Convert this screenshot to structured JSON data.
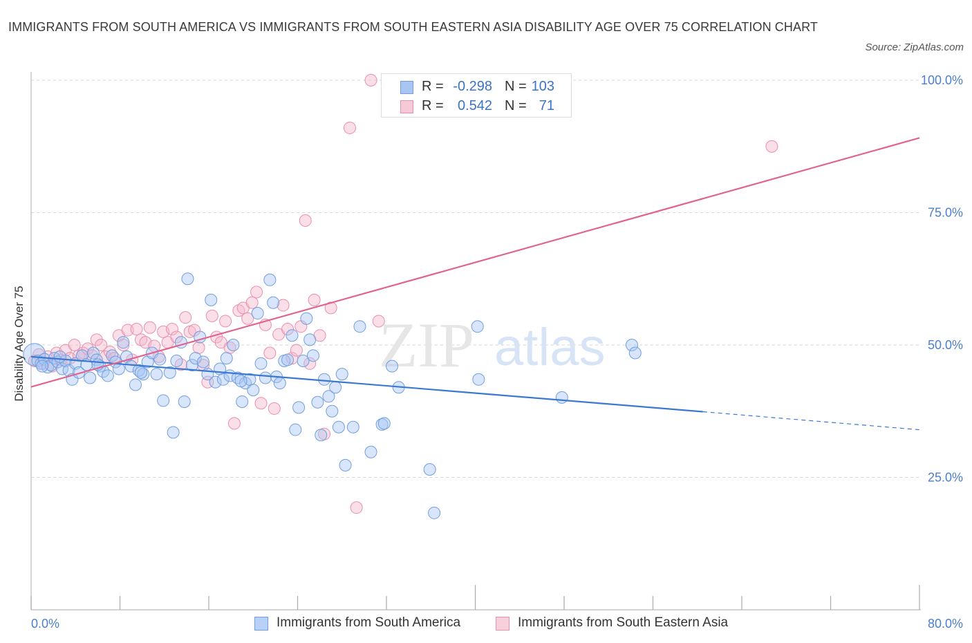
{
  "title": "IMMIGRANTS FROM SOUTH AMERICA VS IMMIGRANTS FROM SOUTH EASTERN ASIA DISABILITY AGE OVER 75 CORRELATION CHART",
  "source": "Source: ZipAtlas.com",
  "watermark": {
    "zip": "ZIP",
    "atlas": "atlas"
  },
  "legend": {
    "rows": [
      {
        "r_label": "R =",
        "r_value": "-0.298",
        "n_label": "N =",
        "n_value": "103"
      },
      {
        "r_label": "R =",
        "r_value": "0.542",
        "n_label": "N =",
        "n_value": "71"
      }
    ]
  },
  "bottom_legend": {
    "south_america": "Immigrants from South America",
    "se_asia": "Immigrants from South Eastern Asia"
  },
  "colors": {
    "blue_fill": "#a9c6f3",
    "blue_stroke": "#6f9ee0",
    "blue_line": "#3a78d1",
    "pink_fill": "#f6b9cb",
    "pink_stroke": "#e98fab",
    "pink_line": "#e0648d",
    "tick": "#4a7fd0",
    "grid": "#d6d6d6"
  },
  "chart_data": {
    "type": "scatter",
    "title": "IMMIGRANTS FROM SOUTH AMERICA VS IMMIGRANTS FROM SOUTH EASTERN ASIA DISABILITY AGE OVER 75 CORRELATION CHART",
    "xlabel": "",
    "ylabel": "Disability Age Over 75",
    "xlim": [
      0,
      80
    ],
    "ylim": [
      0,
      102
    ],
    "x_tick_labels": [
      "0.0%",
      "80.0%"
    ],
    "y_ticks": [
      25,
      50,
      75,
      100
    ],
    "y_tick_labels": [
      "25.0%",
      "50.0%",
      "75.0%",
      "100.0%"
    ],
    "grid": true,
    "legend_position": "top-center",
    "series": [
      {
        "name": "Immigrants from South America",
        "color": "#6f9ee0",
        "trend": {
          "x": [
            0,
            60.5
          ],
          "y": [
            47.8,
            37.4
          ],
          "dashed_to": [
            80,
            34.0
          ]
        },
        "points": [
          [
            0.3,
            48.2
          ],
          [
            0.6,
            47.0
          ],
          [
            0.9,
            46.5
          ],
          [
            1.2,
            47.3
          ],
          [
            1.5,
            45.8
          ],
          [
            1.8,
            46.2
          ],
          [
            2.1,
            47.5
          ],
          [
            2.4,
            46.8
          ],
          [
            2.8,
            45.5
          ],
          [
            3.1,
            47.0
          ],
          [
            3.4,
            45.2
          ],
          [
            3.7,
            43.5
          ],
          [
            4.0,
            46.5
          ],
          [
            4.3,
            44.8
          ],
          [
            4.6,
            48.0
          ],
          [
            5.0,
            46.3
          ],
          [
            5.3,
            43.8
          ],
          [
            5.6,
            48.5
          ],
          [
            5.9,
            47.2
          ],
          [
            6.2,
            46.0
          ],
          [
            6.5,
            45.0
          ],
          [
            6.9,
            44.2
          ],
          [
            7.3,
            48.0
          ],
          [
            7.6,
            46.8
          ],
          [
            7.9,
            45.5
          ],
          [
            8.3,
            50.5
          ],
          [
            8.6,
            47.8
          ],
          [
            9.0,
            46.0
          ],
          [
            9.4,
            42.5
          ],
          [
            9.7,
            45.2
          ],
          [
            10.1,
            44.5
          ],
          [
            10.5,
            46.8
          ],
          [
            10.9,
            48.5
          ],
          [
            11.3,
            44.5
          ],
          [
            11.6,
            47.3
          ],
          [
            11.9,
            39.5
          ],
          [
            12.5,
            44.8
          ],
          [
            12.8,
            33.5
          ],
          [
            13.1,
            47.0
          ],
          [
            13.5,
            50.5
          ],
          [
            13.8,
            39.3
          ],
          [
            14.1,
            62.5
          ],
          [
            14.5,
            46.2
          ],
          [
            14.8,
            47.5
          ],
          [
            15.2,
            51.5
          ],
          [
            15.5,
            46.8
          ],
          [
            15.9,
            44.5
          ],
          [
            16.2,
            58.5
          ],
          [
            16.6,
            43.0
          ],
          [
            17.0,
            45.5
          ],
          [
            17.3,
            43.5
          ],
          [
            17.6,
            47.5
          ],
          [
            17.9,
            44.2
          ],
          [
            18.2,
            50.0
          ],
          [
            18.6,
            43.8
          ],
          [
            19.0,
            39.3
          ],
          [
            19.3,
            42.8
          ],
          [
            19.7,
            43.5
          ],
          [
            20.0,
            41.5
          ],
          [
            20.4,
            56.0
          ],
          [
            20.7,
            46.5
          ],
          [
            21.1,
            43.8
          ],
          [
            21.5,
            62.3
          ],
          [
            21.8,
            58.0
          ],
          [
            22.1,
            44.0
          ],
          [
            22.4,
            42.8
          ],
          [
            22.8,
            47.0
          ],
          [
            23.1,
            47.2
          ],
          [
            23.5,
            51.8
          ],
          [
            23.8,
            34.0
          ],
          [
            24.1,
            38.2
          ],
          [
            24.5,
            47.0
          ],
          [
            24.8,
            55.0
          ],
          [
            25.1,
            51.0
          ],
          [
            25.4,
            48.0
          ],
          [
            25.8,
            39.2
          ],
          [
            26.1,
            33.0
          ],
          [
            26.4,
            43.5
          ],
          [
            26.8,
            40.3
          ],
          [
            27.1,
            37.5
          ],
          [
            27.4,
            42.0
          ],
          [
            27.7,
            34.5
          ],
          [
            28.0,
            44.5
          ],
          [
            28.3,
            27.3
          ],
          [
            29.0,
            34.5
          ],
          [
            29.6,
            53.5
          ],
          [
            30.6,
            29.8
          ],
          [
            31.6,
            35.0
          ],
          [
            32.5,
            46.0
          ],
          [
            33.1,
            42.0
          ],
          [
            35.9,
            26.5
          ],
          [
            36.3,
            18.3
          ],
          [
            40.2,
            53.5
          ],
          [
            40.3,
            43.5
          ],
          [
            47.8,
            40.1
          ],
          [
            54.1,
            50.0
          ],
          [
            54.4,
            48.5
          ],
          [
            31.8,
            35.2
          ],
          [
            18.9,
            43.2
          ],
          [
            6.0,
            46.3
          ],
          [
            2.6,
            47.8
          ],
          [
            1.0,
            46.0
          ],
          [
            9.9,
            44.8
          ]
        ],
        "point_size": "small, one large cluster point at x≈0.3"
      },
      {
        "name": "Immigrants from South Eastern Asia",
        "color": "#e98fab",
        "trend": {
          "x": [
            0,
            80
          ],
          "y": [
            42.1,
            89.1
          ]
        },
        "points": [
          [
            0.3,
            47.0
          ],
          [
            0.7,
            48.2
          ],
          [
            1.1,
            46.5
          ],
          [
            1.5,
            47.8
          ],
          [
            1.9,
            46.0
          ],
          [
            2.3,
            48.5
          ],
          [
            2.7,
            47.2
          ],
          [
            3.1,
            49.0
          ],
          [
            3.5,
            47.5
          ],
          [
            3.9,
            50.0
          ],
          [
            4.3,
            48.0
          ],
          [
            4.7,
            48.5
          ],
          [
            5.1,
            49.3
          ],
          [
            5.5,
            48.0
          ],
          [
            5.9,
            51.0
          ],
          [
            6.3,
            50.0
          ],
          [
            6.7,
            47.8
          ],
          [
            7.1,
            48.7
          ],
          [
            7.5,
            47.5
          ],
          [
            7.9,
            51.8
          ],
          [
            8.3,
            50.0
          ],
          [
            8.7,
            52.8
          ],
          [
            9.1,
            47.2
          ],
          [
            9.5,
            53.0
          ],
          [
            9.9,
            51.0
          ],
          [
            10.3,
            50.5
          ],
          [
            10.7,
            53.3
          ],
          [
            11.1,
            49.8
          ],
          [
            11.5,
            47.8
          ],
          [
            11.9,
            52.5
          ],
          [
            12.3,
            50.5
          ],
          [
            12.7,
            53.0
          ],
          [
            13.1,
            51.5
          ],
          [
            13.5,
            46.3
          ],
          [
            13.9,
            55.2
          ],
          [
            14.3,
            52.5
          ],
          [
            14.7,
            52.8
          ],
          [
            15.1,
            49.5
          ],
          [
            15.5,
            46.2
          ],
          [
            15.9,
            43.0
          ],
          [
            16.3,
            55.5
          ],
          [
            16.7,
            51.5
          ],
          [
            17.1,
            50.5
          ],
          [
            17.5,
            54.5
          ],
          [
            17.9,
            49.5
          ],
          [
            18.3,
            35.2
          ],
          [
            18.7,
            56.5
          ],
          [
            19.1,
            57.0
          ],
          [
            19.5,
            55.0
          ],
          [
            19.9,
            58.0
          ],
          [
            20.3,
            60.0
          ],
          [
            20.7,
            39.0
          ],
          [
            21.1,
            53.8
          ],
          [
            21.5,
            48.5
          ],
          [
            21.9,
            38.0
          ],
          [
            22.3,
            52.0
          ],
          [
            22.7,
            57.5
          ],
          [
            23.1,
            53.0
          ],
          [
            23.5,
            47.5
          ],
          [
            23.9,
            49.0
          ],
          [
            24.3,
            53.5
          ],
          [
            24.7,
            73.5
          ],
          [
            25.1,
            46.5
          ],
          [
            25.5,
            58.5
          ],
          [
            26.0,
            51.8
          ],
          [
            26.4,
            33.2
          ],
          [
            27.0,
            57.0
          ],
          [
            28.7,
            91.0
          ],
          [
            30.6,
            100.0
          ],
          [
            33.9,
            100.0
          ],
          [
            29.3,
            19.3
          ]
        ],
        "extra_points": [
          [
            66.7,
            87.5
          ],
          [
            31.3,
            54.5
          ]
        ]
      }
    ]
  }
}
